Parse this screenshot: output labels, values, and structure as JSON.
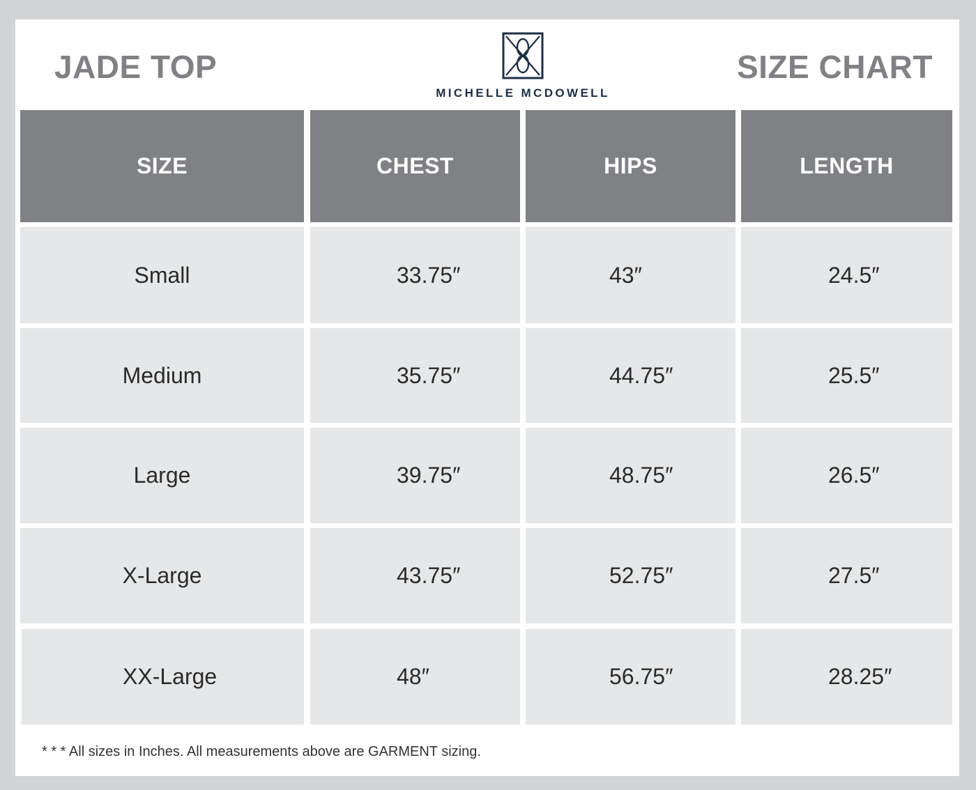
{
  "header": {
    "product_title": "JADE TOP",
    "chart_title": "SIZE CHART",
    "brand_name": "MICHELLE MCDOWELL"
  },
  "colors": {
    "header_fill": "#808184",
    "row_fill": "#e6e7e8",
    "brand_navy": "#1c2f45",
    "outer_background": "#d2d3d5"
  },
  "icons": {
    "logo": "interlaced-monogram-square"
  },
  "table": {
    "columns": [
      "SIZE",
      "CHEST",
      "HIPS",
      "LENGTH"
    ],
    "rows": [
      [
        "Small",
        "33.75″",
        "43″",
        "24.5″"
      ],
      [
        "Medium",
        "35.75″",
        "44.75″",
        "25.5″"
      ],
      [
        "Large",
        "39.75″",
        "48.75″",
        "26.5″"
      ],
      [
        "X-Large",
        "43.75″",
        "52.75″",
        "27.5″"
      ],
      [
        "XX-Large",
        "48″",
        "56.75″",
        "28.25″"
      ]
    ]
  },
  "footnote": "* * * All sizes in Inches. All measurements above are GARMENT sizing."
}
